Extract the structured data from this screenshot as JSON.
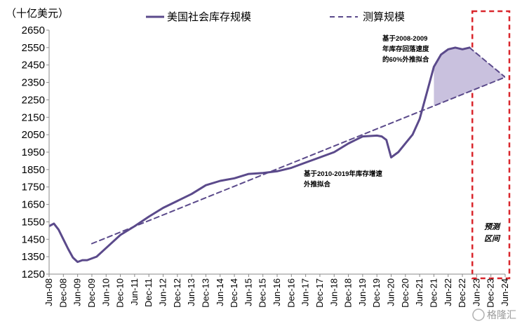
{
  "chart_data": {
    "type": "line",
    "unit_label": "（十亿美元）",
    "legend": [
      {
        "name": "美国社会库存规模",
        "style": "solid",
        "color": "#5b4a8b"
      },
      {
        "name": "测算规模",
        "style": "dashed",
        "color": "#5b4a8b"
      }
    ],
    "ylim": [
      1250,
      2650
    ],
    "yticks": [
      1250,
      1350,
      1450,
      1550,
      1650,
      1750,
      1850,
      1950,
      2050,
      2150,
      2250,
      2350,
      2450,
      2550,
      2650
    ],
    "xlim": [
      "2008-06",
      "2024-06"
    ],
    "xtick_labels": [
      "Jun-08",
      "Dec-08",
      "Jun-09",
      "Dec-09",
      "Jun-10",
      "Dec-10",
      "Jun-11",
      "Dec-11",
      "Jun-12",
      "Dec-12",
      "Jun-13",
      "Dec-13",
      "Jun-14",
      "Dec-14",
      "Jun-15",
      "Dec-15",
      "Jun-16",
      "Dec-16",
      "Jun-17",
      "Dec-17",
      "Jun-18",
      "Dec-18",
      "Jun-19",
      "Dec-19",
      "Jun-20",
      "Dec-20",
      "Jun-21",
      "Dec-21",
      "Jun-22",
      "Dec-22",
      "Jun-23",
      "Dec-23",
      "Jun-24"
    ],
    "series": [
      {
        "name": "美国社会库存规模",
        "style": "solid",
        "x": [
          "2008-06",
          "2008-08",
          "2008-10",
          "2008-12",
          "2009-02",
          "2009-04",
          "2009-06",
          "2009-08",
          "2009-10",
          "2009-12",
          "2010-02",
          "2010-06",
          "2010-12",
          "2011-06",
          "2011-12",
          "2012-06",
          "2012-12",
          "2013-06",
          "2013-12",
          "2014-06",
          "2014-12",
          "2015-06",
          "2015-12",
          "2016-06",
          "2016-12",
          "2017-06",
          "2017-12",
          "2018-06",
          "2018-12",
          "2019-06",
          "2019-12",
          "2020-02",
          "2020-04",
          "2020-06",
          "2020-09",
          "2020-12",
          "2021-03",
          "2021-06",
          "2021-09",
          "2021-12",
          "2022-03",
          "2022-06",
          "2022-09",
          "2022-12",
          "2023-03"
        ],
        "values": [
          1525,
          1540,
          1505,
          1450,
          1395,
          1345,
          1320,
          1330,
          1330,
          1340,
          1350,
          1400,
          1475,
          1525,
          1580,
          1630,
          1670,
          1710,
          1760,
          1785,
          1800,
          1825,
          1830,
          1840,
          1860,
          1890,
          1920,
          1950,
          2000,
          2040,
          2045,
          2040,
          2020,
          1920,
          1950,
          2000,
          2050,
          2140,
          2290,
          2440,
          2510,
          2540,
          2550,
          2540,
          2550
        ]
      },
      {
        "name": "测算规模（2010-2019外推）",
        "style": "dashed",
        "x": [
          "2009-12",
          "2024-06"
        ],
        "values": [
          1425,
          2380
        ]
      },
      {
        "name": "测算规模（2008-2009外推）",
        "style": "dashed",
        "x": [
          "2023-03",
          "2024-06"
        ],
        "values": [
          2550,
          2380
        ]
      }
    ],
    "annotations": {
      "anno_2008": [
        "基于2008-2009",
        "年库存回落速度",
        "的60%外推拟合"
      ],
      "anno_2010": [
        "基于2010-2019年库存增速",
        "外推拟合"
      ],
      "forecast_zone": {
        "start": "2023-03",
        "end": "2024-06",
        "label": [
          "预测",
          "区间"
        ],
        "color": "#d9262c"
      }
    },
    "watermark": "格隆汇"
  }
}
